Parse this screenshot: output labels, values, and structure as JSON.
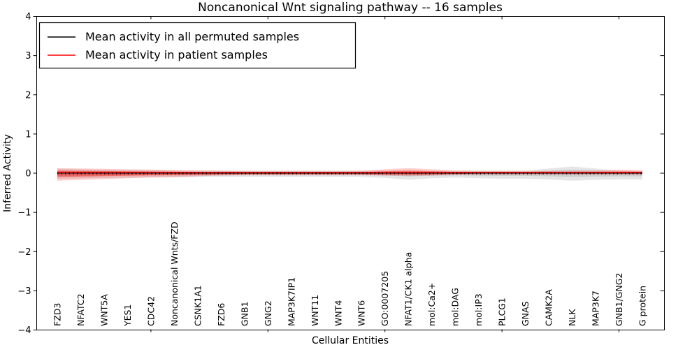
{
  "title": "Noncanonical Wnt signaling pathway -- 16 samples",
  "axes": {
    "xlabel": "Cellular Entities",
    "ylabel": "Inferred Activity"
  },
  "legend": [
    {
      "label": "Mean activity in all permuted samples",
      "color": "#000000"
    },
    {
      "label": "Mean activity in patient samples",
      "color": "#ff0000"
    }
  ],
  "chart_data": {
    "type": "line",
    "title": "Noncanonical Wnt signaling pathway -- 16 samples",
    "xlabel": "Cellular Entities",
    "ylabel": "Inferred Activity",
    "ylim": [
      -4,
      4
    ],
    "yticks": [
      4,
      3,
      2,
      1,
      0,
      -1,
      -2,
      -3,
      -4
    ],
    "x_major_tick_indices": [
      4,
      9,
      14,
      19,
      24
    ],
    "grid": false,
    "legend_position": "upper left",
    "categories": [
      "FZD3",
      "NFATC2",
      "WNT5A",
      "YES1",
      "CDC42",
      "Noncanonical Wnts/FZD",
      "CSNK1A1",
      "FZD6",
      "GNB1",
      "GNG2",
      "MAP3K7IP1",
      "WNT11",
      "WNT4",
      "WNT6",
      "GO:0007205",
      "NFAT1/CK1 alpha",
      "mol:Ca2+",
      "mol:DAG",
      "mol:IP3",
      "PLCG1",
      "GNAS",
      "CAMK2A",
      "NLK",
      "MAP3K7",
      "GNB1/GNG2",
      "G protein"
    ],
    "series": [
      {
        "name": "Mean activity in all permuted samples",
        "color": "#000000",
        "values": [
          0,
          0,
          0,
          0,
          0,
          0,
          0,
          0,
          0,
          0,
          0,
          0,
          0,
          0,
          0,
          0,
          0,
          0,
          0,
          0,
          0,
          0,
          0,
          0,
          0,
          0
        ]
      },
      {
        "name": "Mean activity in patient samples",
        "color": "#ff0000",
        "values": [
          0.02,
          0.02,
          0.02,
          0.02,
          0.02,
          0.02,
          0.02,
          0.02,
          0.02,
          0.02,
          0.02,
          0.02,
          0.02,
          0.02,
          0.02,
          0.02,
          0.02,
          0.02,
          0.02,
          0.02,
          0.02,
          0.02,
          0.02,
          0.02,
          0.02,
          0.02
        ]
      }
    ],
    "bands": [
      {
        "name": "permuted samples range",
        "color": "#000000",
        "upper": [
          0.11,
          0.1,
          0.09,
          0.08,
          0.08,
          0.07,
          0.07,
          0.07,
          0.07,
          0.07,
          0.07,
          0.07,
          0.07,
          0.07,
          0.07,
          0.07,
          0.06,
          0.06,
          0.06,
          0.06,
          0.06,
          0.12,
          0.17,
          0.12,
          0.06,
          0.05
        ],
        "lower": [
          -0.14,
          -0.13,
          -0.12,
          -0.11,
          -0.1,
          -0.1,
          -0.09,
          -0.09,
          -0.09,
          -0.09,
          -0.09,
          -0.09,
          -0.09,
          -0.09,
          -0.12,
          -0.17,
          -0.13,
          -0.11,
          -0.13,
          -0.14,
          -0.14,
          -0.16,
          -0.19,
          -0.17,
          -0.16,
          -0.16
        ]
      },
      {
        "name": "patient samples range",
        "color": "#ff0000",
        "upper": [
          0.13,
          0.12,
          0.11,
          0.1,
          0.09,
          0.08,
          0.07,
          0.06,
          0.05,
          0.05,
          0.05,
          0.05,
          0.05,
          0.06,
          0.1,
          0.13,
          0.1,
          0.07,
          0.06,
          0.06,
          0.06,
          0.06,
          0.06,
          0.07,
          0.09,
          0.08
        ],
        "lower": [
          -0.19,
          -0.17,
          -0.15,
          -0.13,
          -0.11,
          -0.1,
          -0.08,
          -0.06,
          -0.05,
          -0.05,
          -0.05,
          -0.05,
          -0.05,
          -0.05,
          -0.06,
          -0.07,
          -0.06,
          -0.04,
          -0.03,
          -0.03,
          -0.03,
          -0.03,
          -0.03,
          -0.03,
          -0.03,
          -0.03
        ]
      }
    ]
  }
}
